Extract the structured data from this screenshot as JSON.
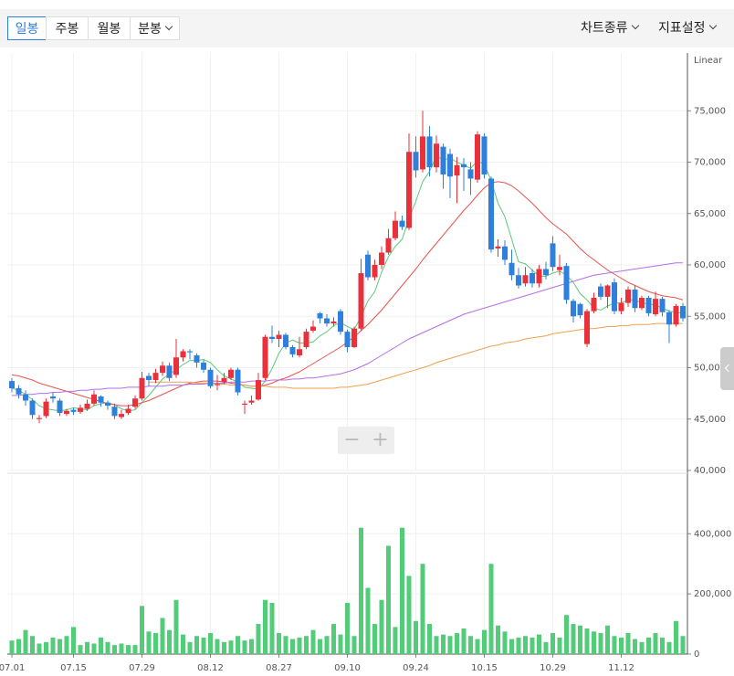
{
  "toolbar": {
    "periods": [
      "일봉",
      "주봉",
      "월봉",
      "분봉"
    ],
    "menus": [
      "차트종류",
      "지표설정"
    ]
  },
  "chart_data": {
    "type": "candlestick",
    "scale_label": "Linear",
    "categories": [
      "07.01",
      null,
      null,
      null,
      null,
      null,
      null,
      null,
      null,
      "07.15",
      null,
      null,
      null,
      null,
      null,
      null,
      null,
      null,
      null,
      "07.29",
      null,
      null,
      null,
      null,
      null,
      null,
      null,
      null,
      null,
      "08.12",
      null,
      null,
      null,
      null,
      null,
      null,
      null,
      null,
      null,
      "08.27",
      null,
      null,
      null,
      null,
      null,
      null,
      null,
      null,
      null,
      "09.10",
      null,
      null,
      null,
      null,
      null,
      null,
      null,
      null,
      null,
      "09.24",
      null,
      null,
      null,
      null,
      null,
      null,
      null,
      null,
      null,
      "10.15",
      null,
      null,
      null,
      null,
      null,
      null,
      null,
      null,
      null,
      "10.29",
      null,
      null,
      null,
      null,
      null,
      null,
      null,
      null,
      null,
      "11.12",
      null,
      null,
      null,
      null,
      null,
      null,
      null,
      null,
      null
    ],
    "up_color": "#e8313b",
    "down_color": "#2f7fdc",
    "ohlc": [
      [
        48700,
        49000,
        47600,
        48000
      ],
      [
        48000,
        48300,
        47000,
        47400
      ],
      [
        47400,
        47800,
        46300,
        46800
      ],
      [
        46800,
        47000,
        45000,
        45400
      ],
      [
        45000,
        45400,
        44600,
        45100
      ],
      [
        45300,
        47000,
        45100,
        46700
      ],
      [
        47200,
        47600,
        46600,
        47000
      ],
      [
        46800,
        47000,
        45300,
        45600
      ],
      [
        45500,
        46000,
        45300,
        45800
      ],
      [
        45900,
        46100,
        45400,
        45700
      ],
      [
        45700,
        46400,
        45500,
        46100
      ],
      [
        46000,
        46900,
        45800,
        46500
      ],
      [
        46500,
        47800,
        46300,
        47400
      ],
      [
        47200,
        47300,
        46200,
        46600
      ],
      [
        46600,
        46800,
        45900,
        46300
      ],
      [
        46200,
        46500,
        45000,
        45300
      ],
      [
        45200,
        45900,
        45000,
        45500
      ],
      [
        45600,
        46400,
        45400,
        46000
      ],
      [
        46200,
        47300,
        46000,
        47000
      ],
      [
        47000,
        49600,
        46800,
        49000
      ],
      [
        49200,
        49500,
        48200,
        48800
      ],
      [
        48800,
        49900,
        48500,
        49500
      ],
      [
        49500,
        50600,
        49200,
        50200
      ],
      [
        50200,
        50500,
        48700,
        49000
      ],
      [
        49300,
        52800,
        49000,
        51000
      ],
      [
        51000,
        51800,
        50600,
        51600
      ],
      [
        51600,
        51800,
        50800,
        51500
      ],
      [
        51200,
        51400,
        50000,
        50500
      ],
      [
        50500,
        50800,
        49500,
        49800
      ],
      [
        49800,
        50000,
        48000,
        48200
      ],
      [
        48300,
        49300,
        47800,
        48400
      ],
      [
        48600,
        49500,
        48400,
        49000
      ],
      [
        49000,
        50000,
        48800,
        49800
      ],
      [
        49800,
        50000,
        47300,
        47600
      ],
      [
        46400,
        46800,
        45500,
        46500
      ],
      [
        46600,
        47300,
        46400,
        46800
      ],
      [
        46900,
        49500,
        46800,
        48800
      ],
      [
        49000,
        53200,
        48800,
        53000
      ],
      [
        53000,
        54100,
        52400,
        52800
      ],
      [
        52800,
        53600,
        52000,
        53200
      ],
      [
        53200,
        53400,
        51800,
        52000
      ],
      [
        52000,
        52200,
        51000,
        51300
      ],
      [
        51200,
        53000,
        51000,
        51800
      ],
      [
        52000,
        53800,
        51800,
        53500
      ],
      [
        53600,
        54600,
        53400,
        54000
      ],
      [
        55300,
        55400,
        54300,
        54800
      ],
      [
        54800,
        55200,
        54000,
        54300
      ],
      [
        54300,
        54900,
        54000,
        54500
      ],
      [
        55500,
        55700,
        53200,
        53500
      ],
      [
        53500,
        53700,
        51500,
        52000
      ],
      [
        52000,
        54000,
        51900,
        53800
      ],
      [
        53800,
        60600,
        53600,
        59200
      ],
      [
        61000,
        61400,
        58500,
        58800
      ],
      [
        58800,
        60500,
        58500,
        60000
      ],
      [
        60000,
        61800,
        59600,
        61200
      ],
      [
        61200,
        63500,
        61000,
        62600
      ],
      [
        62600,
        65200,
        62400,
        64300
      ],
      [
        64300,
        64800,
        63400,
        63700
      ],
      [
        63600,
        72800,
        63400,
        71000
      ],
      [
        71000,
        72500,
        68500,
        69200
      ],
      [
        69300,
        75000,
        69000,
        72500
      ],
      [
        72500,
        73500,
        68600,
        69500
      ],
      [
        69500,
        72600,
        69000,
        71800
      ],
      [
        71500,
        71800,
        67400,
        68800
      ],
      [
        70800,
        71300,
        66500,
        68600
      ],
      [
        68700,
        70500,
        66000,
        69700
      ],
      [
        69800,
        70400,
        67200,
        69500
      ],
      [
        69300,
        70000,
        66800,
        68400
      ],
      [
        68300,
        73000,
        68000,
        72700
      ],
      [
        72500,
        72800,
        68400,
        68800
      ],
      [
        68400,
        68600,
        61200,
        61500
      ],
      [
        61600,
        62500,
        60800,
        61800
      ],
      [
        61800,
        62400,
        60000,
        60500
      ],
      [
        60200,
        61500,
        58500,
        59000
      ],
      [
        59000,
        59700,
        57700,
        58000
      ],
      [
        58200,
        59800,
        57900,
        59000
      ],
      [
        59200,
        59600,
        57800,
        58200
      ],
      [
        58200,
        60000,
        57800,
        59600
      ],
      [
        59600,
        60300,
        58600,
        59000
      ],
      [
        62100,
        62800,
        59400,
        59800
      ],
      [
        59500,
        61000,
        59000,
        59800
      ],
      [
        59900,
        60200,
        56200,
        56600
      ],
      [
        56500,
        56700,
        54400,
        55000
      ],
      [
        56200,
        56300,
        54800,
        55100
      ],
      [
        52300,
        55700,
        52000,
        55500
      ],
      [
        55500,
        57300,
        55300,
        56800
      ],
      [
        57900,
        58200,
        56600,
        56900
      ],
      [
        56900,
        58100,
        55800,
        58000
      ],
      [
        58300,
        58700,
        55200,
        55500
      ],
      [
        55500,
        56800,
        55200,
        56300
      ],
      [
        56300,
        57900,
        55900,
        57600
      ],
      [
        57600,
        58000,
        55400,
        55800
      ],
      [
        55800,
        57000,
        55600,
        56800
      ],
      [
        56800,
        57000,
        55000,
        55300
      ],
      [
        55200,
        57400,
        55000,
        56700
      ],
      [
        56700,
        56900,
        55000,
        55400
      ],
      [
        55400,
        55600,
        52400,
        54200
      ],
      [
        54200,
        56200,
        54000,
        56000
      ],
      [
        56000,
        56300,
        54500,
        54800
      ]
    ],
    "series": [
      {
        "color": "#5cc97a",
        "values": [
          48000,
          47800,
          47400,
          46900,
          46300,
          46000,
          45900,
          45800,
          45900,
          46100,
          46000,
          45900,
          46300,
          46500,
          46600,
          46400,
          46000,
          45800,
          45900,
          46600,
          47300,
          48100,
          48900,
          49400,
          49800,
          50300,
          50700,
          50700,
          50800,
          50500,
          49800,
          49200,
          48900,
          48600,
          48100,
          48000,
          47900,
          48700,
          49900,
          51400,
          52400,
          52700,
          52400,
          52400,
          52500,
          53100,
          53500,
          54100,
          54400,
          54000,
          53700,
          55000,
          56500,
          57400,
          59300,
          60800,
          61800,
          62500,
          64500,
          66200,
          68100,
          69100,
          70600,
          70200,
          70400,
          70000,
          69700,
          69400,
          70100,
          69800,
          68200,
          66000,
          64700,
          62500,
          60300,
          60100,
          59500,
          58900,
          58900,
          59200,
          59400,
          59000,
          58300,
          57200,
          56600,
          55800,
          55600,
          56000,
          56300,
          56300,
          56600,
          56600,
          56300,
          56200,
          56100,
          55800,
          55500,
          55400,
          55300
        ]
      },
      {
        "color": "#e8534f",
        "values": [
          49300,
          49200,
          49000,
          48800,
          48500,
          48300,
          48100,
          47900,
          47700,
          47500,
          47300,
          47100,
          46900,
          46700,
          46500,
          46400,
          46300,
          46300,
          46400,
          46600,
          46800,
          47100,
          47400,
          47700,
          48000,
          48300,
          48500,
          48600,
          48700,
          48700,
          48700,
          48600,
          48500,
          48400,
          48300,
          48200,
          48200,
          48300,
          48500,
          48800,
          49000,
          49300,
          49600,
          50000,
          50400,
          50800,
          51200,
          51600,
          52000,
          52500,
          53000,
          53600,
          54200,
          54900,
          55600,
          56400,
          57200,
          58000,
          58800,
          59600,
          60500,
          61300,
          62100,
          62900,
          63700,
          64500,
          65300,
          66000,
          66800,
          67500,
          68000,
          68100,
          68000,
          67700,
          67200,
          66600,
          66000,
          65300,
          64600,
          64000,
          63500,
          63000,
          62300,
          61600,
          61000,
          60500,
          60000,
          59500,
          59100,
          58700,
          58300,
          58000,
          57700,
          57400,
          57200,
          57000,
          56900,
          56800,
          56600
        ]
      },
      {
        "color": "#b56ee8",
        "values": [
          47300,
          47300,
          47400,
          47400,
          47500,
          47500,
          47600,
          47600,
          47700,
          47700,
          47800,
          47800,
          47900,
          47900,
          48000,
          48000,
          48000,
          48100,
          48100,
          48100,
          48200,
          48200,
          48200,
          48300,
          48300,
          48300,
          48400,
          48400,
          48400,
          48500,
          48500,
          48500,
          48600,
          48600,
          48600,
          48700,
          48700,
          48700,
          48800,
          48800,
          48800,
          48900,
          48900,
          49000,
          49000,
          49100,
          49200,
          49300,
          49400,
          49600,
          49800,
          50100,
          50400,
          50800,
          51200,
          51600,
          52000,
          52400,
          52800,
          53100,
          53400,
          53700,
          54000,
          54300,
          54600,
          54900,
          55200,
          55400,
          55600,
          55800,
          56000,
          56200,
          56400,
          56600,
          56800,
          57000,
          57200,
          57400,
          57600,
          57800,
          58000,
          58200,
          58400,
          58600,
          58800,
          59000,
          59100,
          59200,
          59300,
          59400,
          59500,
          59600,
          59700,
          59800,
          59900,
          60000,
          60100,
          60200,
          60200
        ]
      },
      {
        "color": "#f0a050",
        "values": [
          null,
          null,
          null,
          null,
          null,
          null,
          null,
          null,
          null,
          null,
          null,
          null,
          null,
          null,
          null,
          null,
          null,
          null,
          null,
          null,
          48600,
          48600,
          48600,
          48600,
          48600,
          48600,
          48600,
          48500,
          48500,
          48500,
          48400,
          48400,
          48300,
          48300,
          48300,
          48200,
          48200,
          48200,
          48100,
          48100,
          48100,
          48000,
          48000,
          48000,
          48000,
          48000,
          48000,
          48000,
          48100,
          48100,
          48200,
          48300,
          48400,
          48600,
          48800,
          49000,
          49200,
          49400,
          49600,
          49800,
          50000,
          50200,
          50500,
          50700,
          50900,
          51100,
          51300,
          51500,
          51700,
          51900,
          52100,
          52200,
          52400,
          52500,
          52600,
          52800,
          52900,
          53000,
          53100,
          53300,
          53400,
          53500,
          53600,
          53700,
          53800,
          53800,
          53900,
          54000,
          54000,
          54100,
          54100,
          54200,
          54200,
          54200,
          54300,
          54300,
          54300,
          54300,
          54300
        ]
      }
    ],
    "ylim": [
      40000,
      80000
    ],
    "yticks": [
      {
        "value": 40000,
        "label": "40,000"
      },
      {
        "value": 45000,
        "label": "45,000"
      },
      {
        "value": 50000,
        "label": "50,000"
      },
      {
        "value": 55000,
        "label": "55,000"
      },
      {
        "value": 60000,
        "label": "60,000"
      },
      {
        "value": 65000,
        "label": "65,000"
      },
      {
        "value": 70000,
        "label": "70,000"
      },
      {
        "value": 75000,
        "label": "75,000"
      }
    ],
    "grid": true,
    "volume": {
      "color": "#52cc78",
      "ylim": [
        0,
        580000
      ],
      "yticks": [
        0,
        {
          "value": 200000,
          "label": "200,000"
        },
        {
          "value": 400000,
          "label": "400,000"
        }
      ],
      "values": [
        45000,
        50000,
        80000,
        60000,
        35000,
        40000,
        55000,
        50000,
        60000,
        90000,
        30000,
        40000,
        35000,
        55000,
        40000,
        30000,
        35000,
        30000,
        30000,
        160000,
        75000,
        70000,
        120000,
        80000,
        180000,
        65000,
        40000,
        60000,
        55000,
        70000,
        50000,
        40000,
        45000,
        60000,
        45000,
        50000,
        100000,
        180000,
        170000,
        70000,
        60000,
        50000,
        55000,
        60000,
        80000,
        50000,
        60000,
        100000,
        65000,
        170000,
        60000,
        420000,
        220000,
        100000,
        180000,
        360000,
        90000,
        420000,
        260000,
        110000,
        300000,
        100000,
        60000,
        65000,
        60000,
        70000,
        85000,
        60000,
        50000,
        80000,
        300000,
        95000,
        75000,
        50000,
        55000,
        60000,
        55000,
        65000,
        40000,
        70000,
        55000,
        130000,
        100000,
        95000,
        85000,
        75000,
        70000,
        95000,
        60000,
        55000,
        70000,
        50000,
        40000,
        55000,
        70000,
        55000,
        40000,
        110000,
        60000
      ]
    }
  }
}
